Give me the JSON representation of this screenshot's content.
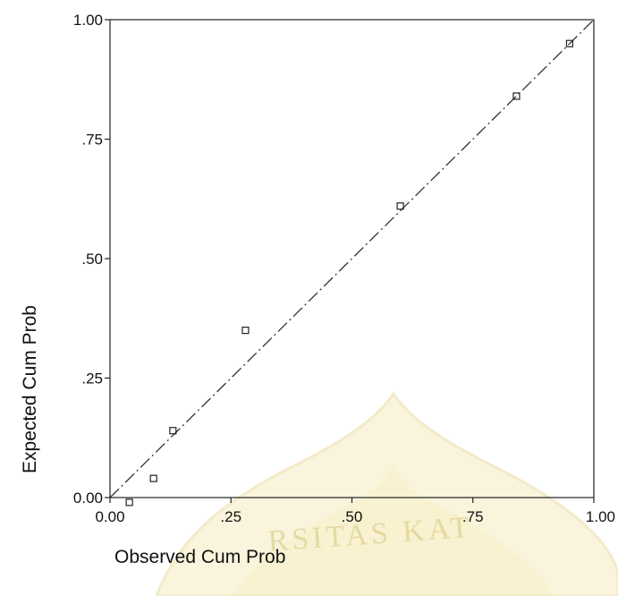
{
  "chart_data": {
    "type": "scatter",
    "title": "",
    "xlabel": "Observed Cum Prob",
    "ylabel": "Expected Cum Prob",
    "xlim": [
      0,
      1
    ],
    "ylim": [
      0,
      1
    ],
    "x_ticks": [
      0,
      0.25,
      0.5,
      0.75,
      1
    ],
    "y_ticks": [
      0,
      0.25,
      0.5,
      0.75,
      1
    ],
    "x_tick_labels": [
      "0.00",
      ".25",
      ".50",
      ".75",
      "1.00"
    ],
    "y_tick_labels": [
      "0.00",
      ".25",
      ".50",
      ".75",
      "1.00"
    ],
    "grid": false,
    "reference_line": {
      "from": [
        0,
        0
      ],
      "to": [
        1,
        1
      ],
      "style": "dash-dot"
    },
    "points": [
      {
        "x": 0.04,
        "y": -0.01
      },
      {
        "x": 0.09,
        "y": 0.04
      },
      {
        "x": 0.13,
        "y": 0.14
      },
      {
        "x": 0.28,
        "y": 0.35
      },
      {
        "x": 0.6,
        "y": 0.61
      },
      {
        "x": 0.84,
        "y": 0.84
      },
      {
        "x": 0.95,
        "y": 0.95
      }
    ],
    "marker": "hollow-square"
  },
  "watermark": {
    "text": "RSITAS KAT",
    "color": "#e9d98a"
  }
}
